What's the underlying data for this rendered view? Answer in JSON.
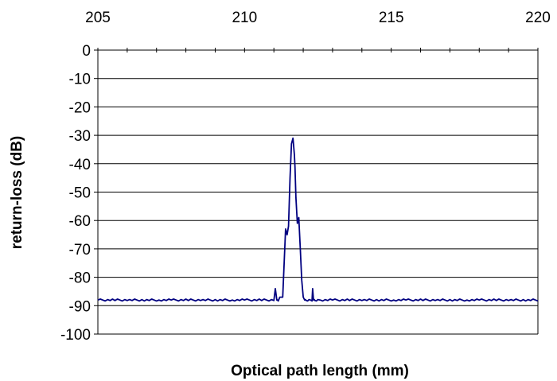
{
  "chart_data": {
    "type": "line",
    "title": "",
    "xlabel": "Optical path length (mm)",
    "ylabel": "return-loss (dB)",
    "x_axis_position": "top",
    "xlim": [
      205,
      220
    ],
    "ylim": [
      -100,
      0
    ],
    "x_ticks": [
      205,
      210,
      215,
      220
    ],
    "y_ticks": [
      0,
      -10,
      -20,
      -30,
      -40,
      -50,
      -60,
      -70,
      -80,
      -90,
      -100
    ],
    "grid": "horizontal",
    "legend": "none",
    "line_color": "#000080",
    "series": [
      {
        "x": [
          205.0,
          205.5,
          206.0,
          206.5,
          207.0,
          207.5,
          208.0,
          208.5,
          209.0,
          209.5,
          210.0,
          210.5,
          211.0,
          211.05,
          211.1,
          211.15,
          211.2,
          211.3,
          211.4,
          211.45,
          211.5,
          211.55,
          211.6,
          211.65,
          211.7,
          211.72,
          211.75,
          211.8,
          211.85,
          211.9,
          211.95,
          212.0,
          212.05,
          212.1,
          212.2,
          212.3,
          212.32,
          212.35,
          212.4,
          212.5,
          213.0,
          213.5,
          214.0,
          214.5,
          215.0,
          215.5,
          216.0,
          216.5,
          217.0,
          217.5,
          218.0,
          218.5,
          219.0,
          219.5,
          220.0
        ],
        "y": [
          -88,
          -88,
          -88,
          -88,
          -88,
          -88,
          -88,
          -88,
          -88,
          -88,
          -88,
          -88,
          -88,
          -84,
          -88,
          -88,
          -87,
          -87,
          -63,
          -65,
          -62,
          -45,
          -33,
          -31,
          -37,
          -41,
          -52,
          -61,
          -59,
          -70,
          -81,
          -87,
          -88,
          -88,
          -88,
          -88,
          -84,
          -88,
          -88,
          -88,
          -88,
          -88,
          -88,
          -88,
          -88,
          -88,
          -88,
          -88,
          -88,
          -88,
          -88,
          -88,
          -88,
          -88,
          -88
        ]
      }
    ]
  }
}
